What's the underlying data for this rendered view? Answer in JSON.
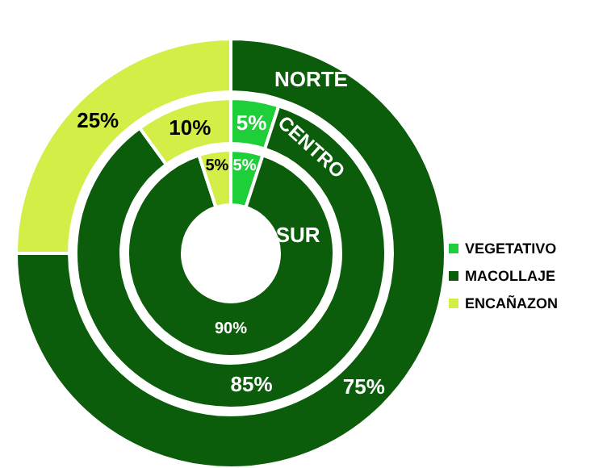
{
  "chart_data": {
    "type": "donut",
    "categories": [
      "VEGETATIVO",
      "MACOLLAJE",
      "ENCAÑAZON"
    ],
    "colors": [
      "#1fcf3a",
      "#0b5c0b",
      "#d2ee47"
    ],
    "legend": "right",
    "series": [
      {
        "name": "NORTE",
        "values": [
          0,
          75,
          25
        ],
        "value_labels": [
          null,
          "75%",
          "25%"
        ]
      },
      {
        "name": "CENTRO",
        "values": [
          5,
          85,
          10
        ],
        "value_labels": [
          "5%",
          "85%",
          "10%"
        ]
      },
      {
        "name": "SUR",
        "values": [
          5,
          90,
          5
        ],
        "value_labels": [
          "5%",
          "90%",
          "5%"
        ]
      }
    ]
  }
}
